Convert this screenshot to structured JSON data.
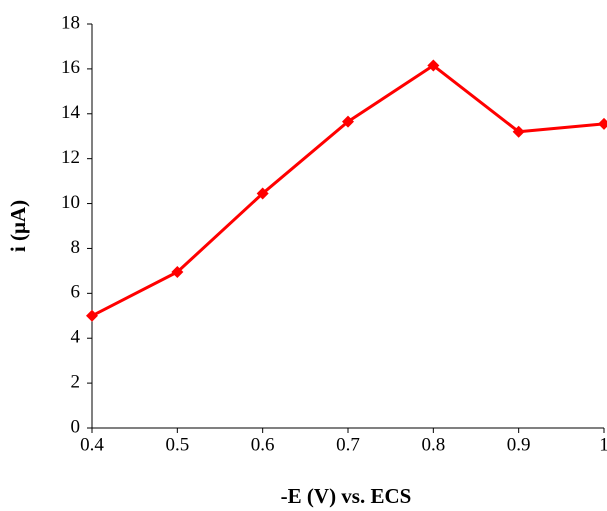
{
  "chart_data": {
    "type": "line",
    "x_label": "-E (V) vs. ECS",
    "y_label": "i (μA)",
    "x": [
      0.4,
      0.5,
      0.6,
      0.7,
      0.8,
      0.9,
      1
    ],
    "series": [
      {
        "name": "i",
        "color": "#ff0000",
        "values": [
          5.0,
          6.95,
          10.45,
          13.65,
          16.15,
          13.2,
          13.55
        ]
      }
    ],
    "xlim": [
      0.4,
      1
    ],
    "xticks": [
      0.4,
      0.5,
      0.6,
      0.7,
      0.8,
      0.9,
      1
    ],
    "ylim": [
      0,
      18
    ],
    "yticks": [
      0,
      2,
      4,
      6,
      8,
      10,
      12,
      14,
      16,
      18
    ],
    "grid": false
  }
}
